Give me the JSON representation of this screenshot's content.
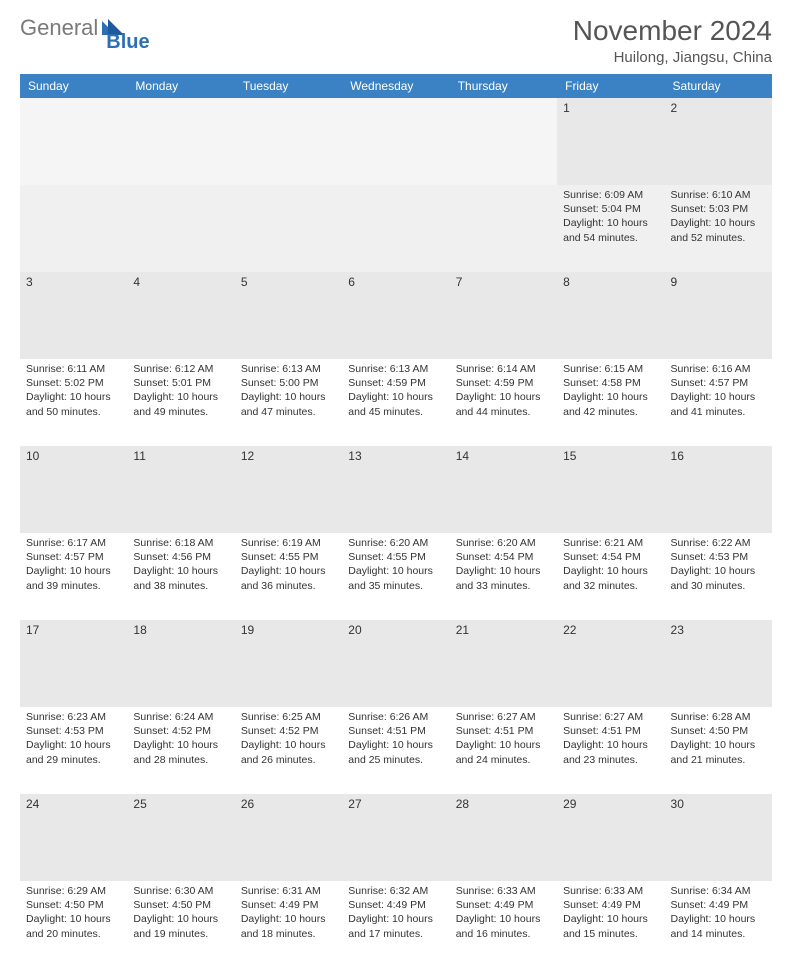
{
  "logo": {
    "part1": "General",
    "part2": "Blue"
  },
  "header": {
    "month_title": "November 2024",
    "location": "Huilong, Jiangsu, China"
  },
  "colors": {
    "header_bg": "#3b82c4",
    "header_text": "#ffffff",
    "daynum_bg": "#e8e8e8",
    "title_color": "#555555",
    "text_color": "#333333",
    "logo_gray": "#7a7a7a",
    "logo_blue": "#2d6fb3"
  },
  "weekdays": [
    "Sunday",
    "Monday",
    "Tuesday",
    "Wednesday",
    "Thursday",
    "Friday",
    "Saturday"
  ],
  "weeks": [
    [
      null,
      null,
      null,
      null,
      null,
      {
        "n": "1",
        "sr": "Sunrise: 6:09 AM",
        "ss": "Sunset: 5:04 PM",
        "dl": "Daylight: 10 hours and 54 minutes."
      },
      {
        "n": "2",
        "sr": "Sunrise: 6:10 AM",
        "ss": "Sunset: 5:03 PM",
        "dl": "Daylight: 10 hours and 52 minutes."
      }
    ],
    [
      {
        "n": "3",
        "sr": "Sunrise: 6:11 AM",
        "ss": "Sunset: 5:02 PM",
        "dl": "Daylight: 10 hours and 50 minutes."
      },
      {
        "n": "4",
        "sr": "Sunrise: 6:12 AM",
        "ss": "Sunset: 5:01 PM",
        "dl": "Daylight: 10 hours and 49 minutes."
      },
      {
        "n": "5",
        "sr": "Sunrise: 6:13 AM",
        "ss": "Sunset: 5:00 PM",
        "dl": "Daylight: 10 hours and 47 minutes."
      },
      {
        "n": "6",
        "sr": "Sunrise: 6:13 AM",
        "ss": "Sunset: 4:59 PM",
        "dl": "Daylight: 10 hours and 45 minutes."
      },
      {
        "n": "7",
        "sr": "Sunrise: 6:14 AM",
        "ss": "Sunset: 4:59 PM",
        "dl": "Daylight: 10 hours and 44 minutes."
      },
      {
        "n": "8",
        "sr": "Sunrise: 6:15 AM",
        "ss": "Sunset: 4:58 PM",
        "dl": "Daylight: 10 hours and 42 minutes."
      },
      {
        "n": "9",
        "sr": "Sunrise: 6:16 AM",
        "ss": "Sunset: 4:57 PM",
        "dl": "Daylight: 10 hours and 41 minutes."
      }
    ],
    [
      {
        "n": "10",
        "sr": "Sunrise: 6:17 AM",
        "ss": "Sunset: 4:57 PM",
        "dl": "Daylight: 10 hours and 39 minutes."
      },
      {
        "n": "11",
        "sr": "Sunrise: 6:18 AM",
        "ss": "Sunset: 4:56 PM",
        "dl": "Daylight: 10 hours and 38 minutes."
      },
      {
        "n": "12",
        "sr": "Sunrise: 6:19 AM",
        "ss": "Sunset: 4:55 PM",
        "dl": "Daylight: 10 hours and 36 minutes."
      },
      {
        "n": "13",
        "sr": "Sunrise: 6:20 AM",
        "ss": "Sunset: 4:55 PM",
        "dl": "Daylight: 10 hours and 35 minutes."
      },
      {
        "n": "14",
        "sr": "Sunrise: 6:20 AM",
        "ss": "Sunset: 4:54 PM",
        "dl": "Daylight: 10 hours and 33 minutes."
      },
      {
        "n": "15",
        "sr": "Sunrise: 6:21 AM",
        "ss": "Sunset: 4:54 PM",
        "dl": "Daylight: 10 hours and 32 minutes."
      },
      {
        "n": "16",
        "sr": "Sunrise: 6:22 AM",
        "ss": "Sunset: 4:53 PM",
        "dl": "Daylight: 10 hours and 30 minutes."
      }
    ],
    [
      {
        "n": "17",
        "sr": "Sunrise: 6:23 AM",
        "ss": "Sunset: 4:53 PM",
        "dl": "Daylight: 10 hours and 29 minutes."
      },
      {
        "n": "18",
        "sr": "Sunrise: 6:24 AM",
        "ss": "Sunset: 4:52 PM",
        "dl": "Daylight: 10 hours and 28 minutes."
      },
      {
        "n": "19",
        "sr": "Sunrise: 6:25 AM",
        "ss": "Sunset: 4:52 PM",
        "dl": "Daylight: 10 hours and 26 minutes."
      },
      {
        "n": "20",
        "sr": "Sunrise: 6:26 AM",
        "ss": "Sunset: 4:51 PM",
        "dl": "Daylight: 10 hours and 25 minutes."
      },
      {
        "n": "21",
        "sr": "Sunrise: 6:27 AM",
        "ss": "Sunset: 4:51 PM",
        "dl": "Daylight: 10 hours and 24 minutes."
      },
      {
        "n": "22",
        "sr": "Sunrise: 6:27 AM",
        "ss": "Sunset: 4:51 PM",
        "dl": "Daylight: 10 hours and 23 minutes."
      },
      {
        "n": "23",
        "sr": "Sunrise: 6:28 AM",
        "ss": "Sunset: 4:50 PM",
        "dl": "Daylight: 10 hours and 21 minutes."
      }
    ],
    [
      {
        "n": "24",
        "sr": "Sunrise: 6:29 AM",
        "ss": "Sunset: 4:50 PM",
        "dl": "Daylight: 10 hours and 20 minutes."
      },
      {
        "n": "25",
        "sr": "Sunrise: 6:30 AM",
        "ss": "Sunset: 4:50 PM",
        "dl": "Daylight: 10 hours and 19 minutes."
      },
      {
        "n": "26",
        "sr": "Sunrise: 6:31 AM",
        "ss": "Sunset: 4:49 PM",
        "dl": "Daylight: 10 hours and 18 minutes."
      },
      {
        "n": "27",
        "sr": "Sunrise: 6:32 AM",
        "ss": "Sunset: 4:49 PM",
        "dl": "Daylight: 10 hours and 17 minutes."
      },
      {
        "n": "28",
        "sr": "Sunrise: 6:33 AM",
        "ss": "Sunset: 4:49 PM",
        "dl": "Daylight: 10 hours and 16 minutes."
      },
      {
        "n": "29",
        "sr": "Sunrise: 6:33 AM",
        "ss": "Sunset: 4:49 PM",
        "dl": "Daylight: 10 hours and 15 minutes."
      },
      {
        "n": "30",
        "sr": "Sunrise: 6:34 AM",
        "ss": "Sunset: 4:49 PM",
        "dl": "Daylight: 10 hours and 14 minutes."
      }
    ]
  ]
}
